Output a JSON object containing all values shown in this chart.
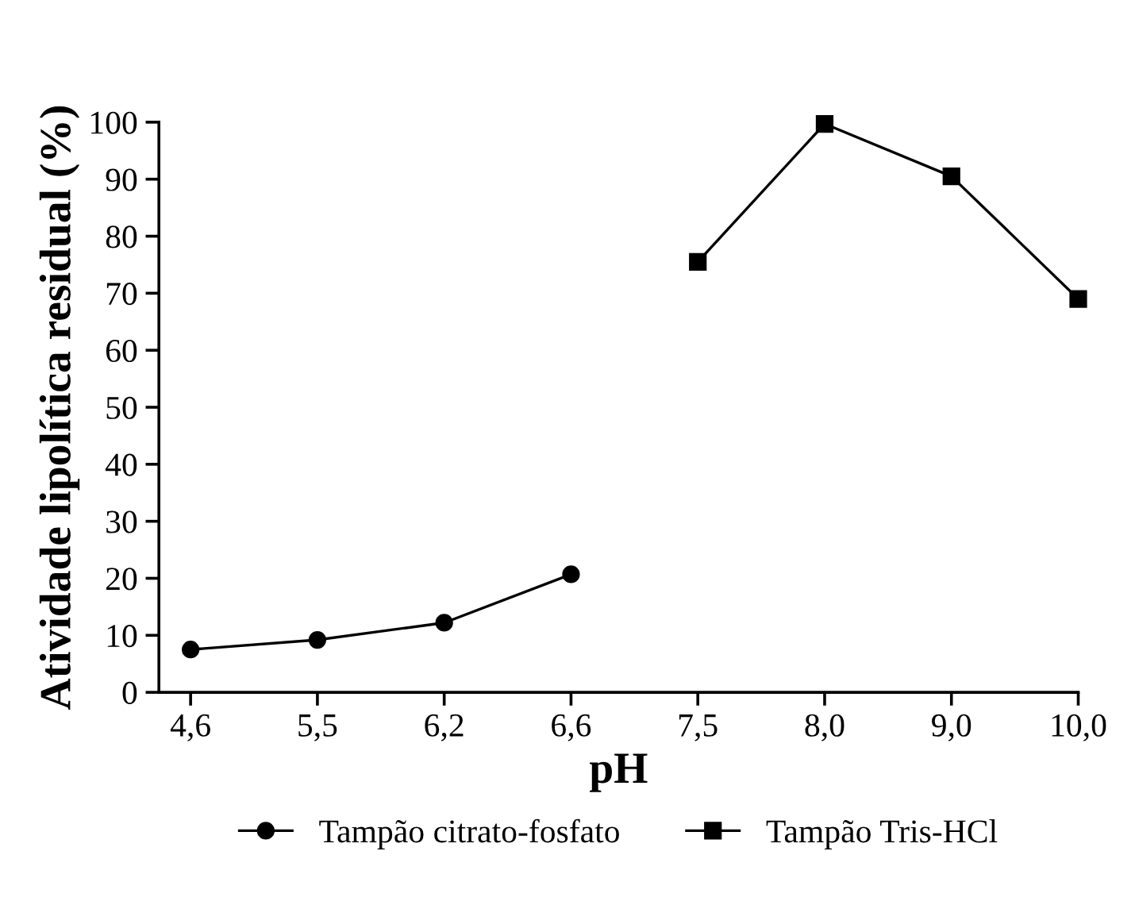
{
  "chart_data": {
    "type": "line",
    "xlabel": "pH",
    "ylabel": "Atividade lipolítica residual (%)",
    "categories": [
      "4,6",
      "5,5",
      "6,2",
      "6,6",
      "7,5",
      "8,0",
      "9,0",
      "10,0"
    ],
    "series": [
      {
        "name": "Tampão citrato-fosfato",
        "color": "#000000",
        "marker": "circle",
        "values": [
          7.5,
          9.2,
          12.2,
          20.7,
          null,
          null,
          null,
          null
        ]
      },
      {
        "name": "Tampão Tris-HCl",
        "color": "#000000",
        "marker": "square",
        "values": [
          null,
          null,
          null,
          null,
          75.5,
          99.7,
          90.5,
          69.0
        ]
      }
    ],
    "ylim": [
      0,
      100
    ],
    "yticks": [
      0,
      10,
      20,
      30,
      40,
      50,
      60,
      70,
      80,
      90,
      100
    ],
    "legend": "bottom",
    "grid": false,
    "line_style": "solid"
  }
}
